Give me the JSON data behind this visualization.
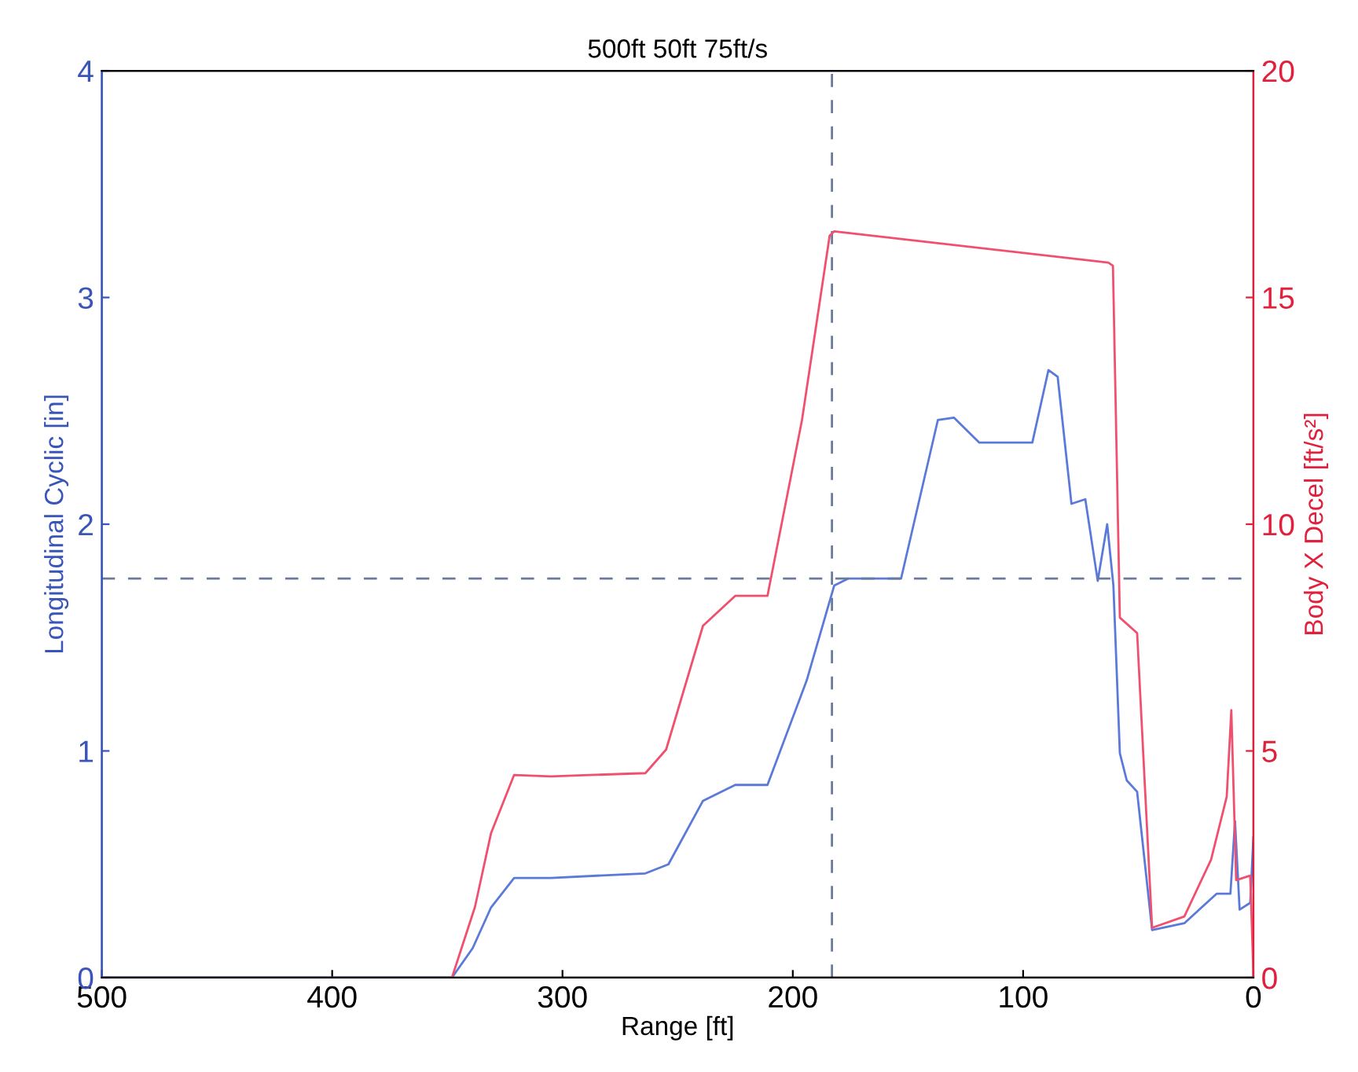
{
  "chart_data": {
    "type": "line",
    "title": "500ft 50ft 75ft/s",
    "xlabel": "Range [ft]",
    "ylabel": "Longitudinal Cyclic [in]",
    "y2label": "Body X Decel [ft/s²]",
    "xlim": [
      500,
      0
    ],
    "xticks": [
      500,
      400,
      300,
      200,
      100,
      0
    ],
    "ylim": [
      0,
      4
    ],
    "yticks": [
      0,
      1,
      2,
      3,
      4
    ],
    "y2lim": [
      0,
      20
    ],
    "y2ticks": [
      0,
      5,
      10,
      15,
      20
    ],
    "line_style": "solid",
    "series": [
      {
        "name": null,
        "color": "#5b79d9",
        "x": [
          500,
          348,
          339,
          331,
          321,
          305,
          264,
          254,
          239,
          225,
          211,
          194,
          182,
          176,
          153,
          137,
          130,
          119,
          96,
          89,
          85,
          79,
          73,
          67.6,
          63.5,
          60.8,
          58,
          55,
          50.5,
          44,
          30,
          16,
          10,
          8,
          6,
          1.4,
          0
        ],
        "values": [
          0,
          0,
          0.13,
          0.31,
          0.44,
          0.44,
          0.46,
          0.5,
          0.78,
          0.85,
          0.85,
          1.31,
          1.73,
          1.76,
          1.76,
          2.46,
          2.47,
          2.36,
          2.36,
          2.68,
          2.65,
          2.09,
          2.11,
          1.75,
          2.0,
          1.73,
          0.99,
          0.87,
          0.82,
          0.21,
          0.24,
          0.37,
          0.37,
          0.69,
          0.3,
          0.33,
          0.62
        ]
      },
      {
        "name": null,
        "color": "#f0506e",
        "axis": "y2",
        "x": [
          348,
          338,
          331,
          321,
          305,
          264,
          255,
          239,
          225,
          211,
          196,
          184,
          182,
          63,
          61,
          58,
          50.5,
          44,
          30,
          18.4,
          11.6,
          9.6,
          7.5,
          1.4,
          0
        ],
        "values": [
          0,
          1.56,
          3.19,
          4.47,
          4.44,
          4.51,
          5.03,
          7.76,
          8.42,
          8.42,
          12.3,
          16.36,
          16.46,
          15.77,
          15.7,
          7.94,
          7.6,
          1.1,
          1.35,
          2.6,
          3.99,
          5.9,
          2.15,
          2.25,
          0.07
        ]
      }
    ],
    "ref_lines": [
      {
        "axis": "x",
        "value": 183,
        "label": null,
        "color": "#6a7a9a",
        "line_style": "dashed"
      },
      {
        "axis": "y",
        "value": 1.76,
        "label": null,
        "color": "#6a7a9a",
        "line_style": "dashed"
      }
    ]
  }
}
